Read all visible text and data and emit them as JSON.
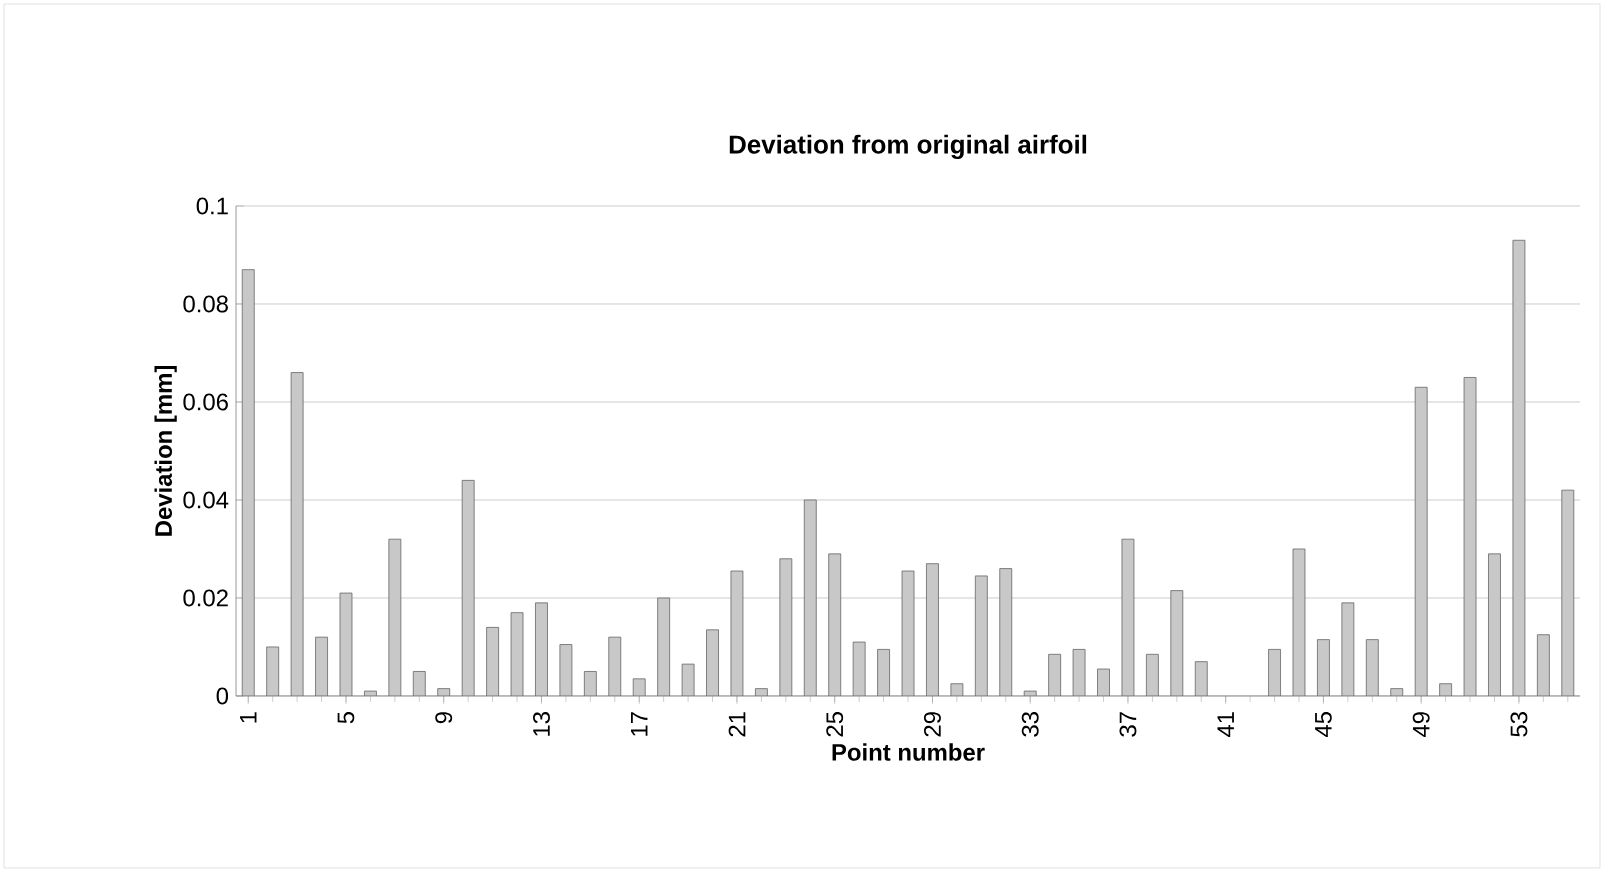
{
  "chart_data": {
    "type": "bar",
    "title": "Deviation from original airfoil",
    "xlabel": "Point number",
    "ylabel": "Deviation [mm]",
    "categories": [
      "1",
      null,
      null,
      null,
      "5",
      null,
      null,
      null,
      "9",
      null,
      null,
      null,
      "13",
      null,
      null,
      null,
      "17",
      null,
      null,
      null,
      "21",
      null,
      null,
      null,
      "25",
      null,
      null,
      null,
      "29",
      null,
      null,
      null,
      "33",
      null,
      null,
      null,
      "37",
      null,
      null,
      null,
      "41",
      null,
      null,
      null,
      "45",
      null,
      null,
      null,
      "49",
      null,
      null,
      null,
      "53",
      null,
      null
    ],
    "values": [
      0.087,
      0.01,
      0.066,
      0.012,
      0.021,
      0.001,
      0.032,
      0.005,
      0.0015,
      0.044,
      0.014,
      0.017,
      0.019,
      0.0105,
      0.005,
      0.012,
      0.0035,
      0.02,
      0.0065,
      0.0135,
      0.0255,
      0.0015,
      0.028,
      0.04,
      0.029,
      0.011,
      0.0095,
      0.0255,
      0.027,
      0.0025,
      0.0245,
      0.026,
      0.001,
      0.0085,
      0.0095,
      0.0055,
      0.032,
      0.0085,
      0.0215,
      0.007,
      null,
      null,
      0.0095,
      0.03,
      0.0115,
      0.019,
      0.0115,
      0.0015,
      0.063,
      0.0025,
      0.065,
      0.029,
      0.093,
      0.0125,
      0.042
    ],
    "color": "#c8c8c8",
    "ylim": [
      0,
      0.1
    ],
    "yticks": [
      0,
      0.02,
      0.04,
      0.06,
      0.08,
      0.1
    ],
    "grid": "y"
  }
}
